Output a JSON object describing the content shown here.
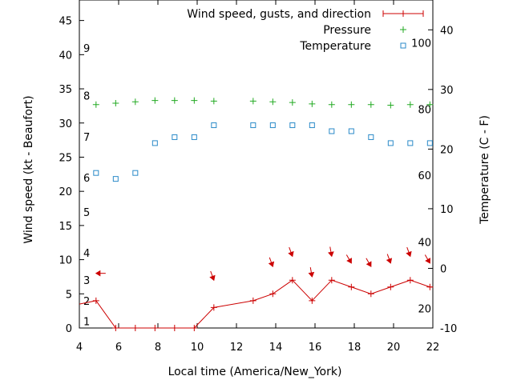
{
  "chart_data": {
    "type": "line",
    "xlabel": "Local time (America/New_York)",
    "ylabel": "Wind speed (kt - Beaufort)",
    "y2label": "Temperature (C - F)",
    "xlim": [
      4,
      22
    ],
    "ylim": [
      0,
      48
    ],
    "y2lim": [
      -10,
      45
    ],
    "x_ticks": [
      4,
      6,
      8,
      10,
      12,
      14,
      16,
      18,
      20,
      22
    ],
    "y_ticks": [
      0,
      5,
      10,
      15,
      20,
      25,
      30,
      35,
      40,
      45
    ],
    "y2_ticks": [
      -10,
      0,
      10,
      20,
      30,
      40
    ],
    "beaufort_labels": [
      {
        "label": "1",
        "kt": 1
      },
      {
        "label": "2",
        "kt": 4
      },
      {
        "label": "3",
        "kt": 7
      },
      {
        "label": "4",
        "kt": 11
      },
      {
        "label": "5",
        "kt": 17
      },
      {
        "label": "6",
        "kt": 22
      },
      {
        "label": "7",
        "kt": 28
      },
      {
        "label": "8",
        "kt": 34
      },
      {
        "label": "9",
        "kt": 41
      }
    ],
    "fahrenheit_labels": [
      {
        "label": "20",
        "c": -6.7
      },
      {
        "label": "40",
        "c": 4.4
      },
      {
        "label": "60",
        "c": 15.6
      },
      {
        "label": "80",
        "c": 26.7
      },
      {
        "label": "100",
        "c": 37.8
      }
    ],
    "legend": {
      "position": "top-right",
      "entries": [
        {
          "label": "Wind speed, gusts, and direction",
          "color": "#cc0000",
          "style": "line-plus"
        },
        {
          "label": "Pressure",
          "color": "#22aa22",
          "style": "plus"
        },
        {
          "label": "Temperature",
          "color": "#2a8ac8",
          "style": "square"
        }
      ]
    },
    "series": [
      {
        "name": "Wind speed, gusts, and direction",
        "color": "#cc0000",
        "x": [
          4,
          4.85,
          5.85,
          6.85,
          7.85,
          8.85,
          9.85,
          10.85,
          12.85,
          13.85,
          14.85,
          15.85,
          16.85,
          17.85,
          18.85,
          19.85,
          20.85,
          21.85,
          22
        ],
        "y": [
          3.5,
          4,
          0,
          0,
          0,
          0,
          0,
          3,
          4,
          5,
          7,
          4,
          7,
          6,
          5,
          6,
          7,
          6,
          6
        ]
      },
      {
        "name": "Pressure",
        "color": "#22aa22",
        "x": [
          4.85,
          5.85,
          6.85,
          7.85,
          8.85,
          9.85,
          10.85,
          12.85,
          13.85,
          14.85,
          15.85,
          16.85,
          17.85,
          18.85,
          19.85,
          20.85,
          21.85
        ],
        "y": [
          32.7,
          32.9,
          33.1,
          33.3,
          33.3,
          33.3,
          33.2,
          33.2,
          33.1,
          33.0,
          32.8,
          32.7,
          32.7,
          32.7,
          32.6,
          32.7,
          32.7
        ]
      },
      {
        "name": "Temperature",
        "color": "#2a8ac8",
        "axis": "y2",
        "x": [
          4.85,
          5.85,
          6.85,
          7.85,
          8.85,
          9.85,
          10.85,
          12.85,
          13.85,
          14.85,
          15.85,
          16.85,
          17.85,
          18.85,
          19.85,
          20.85,
          21.85
        ],
        "y": [
          16,
          15,
          16,
          21,
          22,
          22,
          24,
          24,
          24,
          24,
          24,
          23,
          23,
          22,
          21,
          21,
          21
        ]
      }
    ],
    "wind_arrows": [
      {
        "x": 4.85,
        "kt": 8,
        "from_deg": 90
      },
      {
        "x": 10.85,
        "kt": 7,
        "from_deg": 200
      },
      {
        "x": 13.85,
        "kt": 9,
        "from_deg": 200
      },
      {
        "x": 14.85,
        "kt": 10.5,
        "from_deg": 200
      },
      {
        "x": 15.85,
        "kt": 7.5,
        "from_deg": 190
      },
      {
        "x": 16.85,
        "kt": 10.5,
        "from_deg": 190
      },
      {
        "x": 17.85,
        "kt": 9.5,
        "from_deg": 210
      },
      {
        "x": 18.85,
        "kt": 9,
        "from_deg": 210
      },
      {
        "x": 19.85,
        "kt": 9.5,
        "from_deg": 200
      },
      {
        "x": 20.85,
        "kt": 10.5,
        "from_deg": 200
      },
      {
        "x": 21.85,
        "kt": 9.5,
        "from_deg": 210
      }
    ]
  }
}
